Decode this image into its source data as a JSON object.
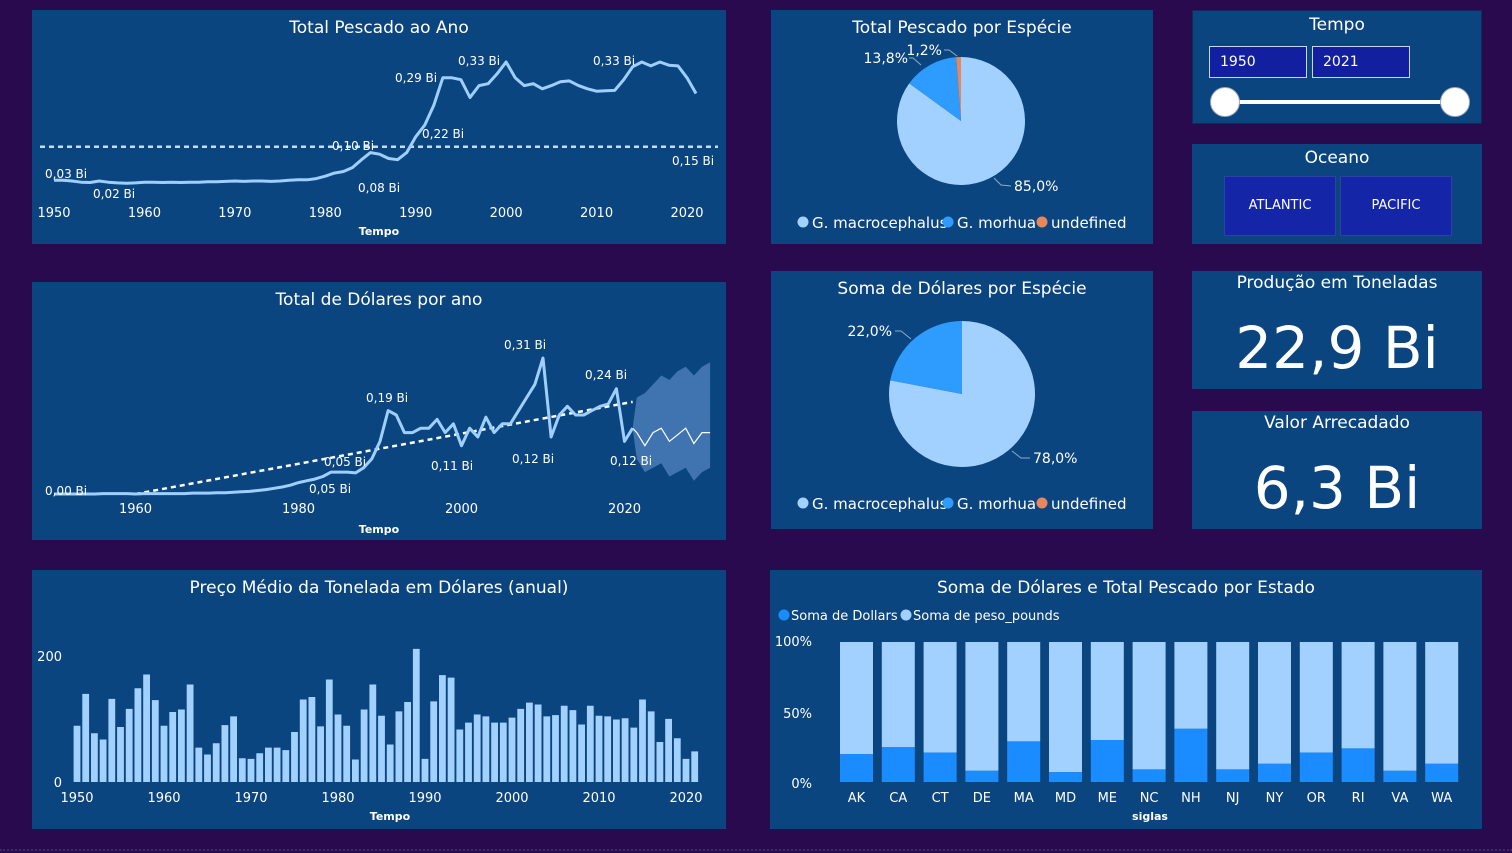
{
  "line_catch": {
    "title": "Total Pescado ao Ano",
    "xlabel": "Tempo",
    "x_ticks": [
      "1950",
      "1960",
      "1970",
      "1980",
      "1990",
      "2000",
      "2010",
      "2020"
    ],
    "labels": [
      "0,03 Bi",
      "0,02 Bi",
      "0,10 Bi",
      "0,08 Bi",
      "0,29 Bi",
      "0,22 Bi",
      "0,33 Bi",
      "0,33 Bi",
      "0,15 Bi"
    ],
    "colors": {
      "line": "#9fcfff",
      "avg": "#c6dcf5"
    }
  },
  "line_dollars": {
    "title": "Total de Dólares por ano",
    "xlabel": "Tempo",
    "x_ticks": [
      "1960",
      "1980",
      "2000",
      "2020"
    ],
    "labels": [
      "0,00 Bi",
      "0,05 Bi",
      "0,05 Bi",
      "0,19 Bi",
      "0,11 Bi",
      "0,31 Bi",
      "0,12 Bi",
      "0,24 Bi",
      "0,12 Bi"
    ]
  },
  "bar_price": {
    "title": "Preço Médio da Tonelada em Dólares (anual)",
    "xlabel": "Tempo",
    "y_ticks": [
      "200",
      "0"
    ],
    "x_ticks": [
      "1950",
      "1960",
      "1970",
      "1980",
      "1990",
      "2000",
      "2010",
      "2020"
    ]
  },
  "pie_catch": {
    "title": "Total Pescado por Espécie",
    "labels": [
      "85,0%",
      "13,8%",
      "1,2%"
    ],
    "legend": [
      "G. macrocephalus",
      "G. morhua",
      "undefined"
    ],
    "colors": [
      "#a2d1ff",
      "#2e9bff",
      "#e8875b"
    ]
  },
  "pie_dollars": {
    "title": "Soma de Dólares por Espécie",
    "labels": [
      "78,0%",
      "22,0%"
    ],
    "legend": [
      "G. macrocephalus",
      "G. morhua",
      "undefined"
    ],
    "colors": [
      "#a2d1ff",
      "#2e9bff",
      "#e8875b"
    ]
  },
  "stacked": {
    "title": "Soma de Dólares e Total Pescado por Estado",
    "legend": [
      "Soma de Dollars",
      "Soma de peso_pounds"
    ],
    "y_ticks": [
      "100%",
      "50%",
      "0%"
    ],
    "xlabel": "siglas",
    "colors": {
      "dollars": "#1a8cff",
      "pounds": "#a2d1ff"
    }
  },
  "slicer_tempo": {
    "title": "Tempo",
    "start": "1950",
    "end": "2021",
    "range_fraction": [
      0,
      1
    ]
  },
  "slicer_oceano": {
    "title": "Oceano",
    "options": [
      "ATLANTIC",
      "PACIFIC"
    ]
  },
  "kpi_producao": {
    "title": "Produção em Toneladas",
    "value": "22,9 Bi"
  },
  "kpi_valor": {
    "title": "Valor Arrecadado",
    "value": "6,3 Bi"
  },
  "chart_data": [
    {
      "type": "line",
      "title": "Total Pescado ao Ano",
      "xlabel": "Tempo",
      "ylabel": "",
      "x": [
        1950,
        1951,
        1952,
        1953,
        1954,
        1955,
        1956,
        1957,
        1958,
        1959,
        1960,
        1961,
        1962,
        1963,
        1964,
        1965,
        1966,
        1967,
        1968,
        1969,
        1970,
        1971,
        1972,
        1973,
        1974,
        1975,
        1976,
        1977,
        1978,
        1979,
        1980,
        1981,
        1982,
        1983,
        1984,
        1985,
        1986,
        1987,
        1988,
        1989,
        1990,
        1991,
        1992,
        1993,
        1994,
        1995,
        1996,
        1997,
        1998,
        1999,
        2000,
        2001,
        2002,
        2003,
        2004,
        2005,
        2006,
        2007,
        2008,
        2009,
        2010,
        2011,
        2012,
        2013,
        2014,
        2015,
        2016,
        2017,
        2018,
        2019,
        2020,
        2021
      ],
      "y": [
        0.03,
        0.03,
        0.028,
        0.025,
        0.024,
        0.028,
        0.025,
        0.023,
        0.022,
        0.023,
        0.025,
        0.025,
        0.024,
        0.025,
        0.024,
        0.025,
        0.025,
        0.026,
        0.026,
        0.027,
        0.028,
        0.027,
        0.028,
        0.028,
        0.027,
        0.028,
        0.03,
        0.031,
        0.031,
        0.034,
        0.04,
        0.048,
        0.052,
        0.062,
        0.082,
        0.1,
        0.096,
        0.085,
        0.082,
        0.1,
        0.14,
        0.17,
        0.22,
        0.29,
        0.29,
        0.285,
        0.24,
        0.27,
        0.275,
        0.3,
        0.33,
        0.29,
        0.27,
        0.275,
        0.262,
        0.27,
        0.28,
        0.282,
        0.27,
        0.262,
        0.256,
        0.257,
        0.258,
        0.285,
        0.318,
        0.33,
        0.32,
        0.33,
        0.322,
        0.32,
        0.29,
        0.25
      ],
      "average": 0.115,
      "ylim": [
        0,
        0.36
      ]
    },
    {
      "type": "line",
      "title": "Total de Dólares por ano",
      "xlabel": "Tempo",
      "x": [
        1950,
        1951,
        1952,
        1953,
        1954,
        1955,
        1956,
        1957,
        1958,
        1959,
        1960,
        1961,
        1962,
        1963,
        1964,
        1965,
        1966,
        1967,
        1968,
        1969,
        1970,
        1971,
        1972,
        1973,
        1974,
        1975,
        1976,
        1977,
        1978,
        1979,
        1980,
        1981,
        1982,
        1983,
        1984,
        1985,
        1986,
        1987,
        1988,
        1989,
        1990,
        1991,
        1992,
        1993,
        1994,
        1995,
        1996,
        1997,
        1998,
        1999,
        2000,
        2001,
        2002,
        2003,
        2004,
        2005,
        2006,
        2007,
        2008,
        2009,
        2010,
        2011,
        2012,
        2013,
        2014,
        2015,
        2016,
        2017,
        2018,
        2019,
        2020,
        2021
      ],
      "y": [
        0.0,
        0.0,
        0.0,
        0.0,
        0.0,
        0.0,
        0.001,
        0.001,
        0.001,
        0.001,
        0.0,
        0.001,
        0.001,
        0.001,
        0.001,
        0.001,
        0.001,
        0.002,
        0.002,
        0.002,
        0.003,
        0.003,
        0.004,
        0.005,
        0.006,
        0.008,
        0.01,
        0.013,
        0.016,
        0.02,
        0.026,
        0.03,
        0.034,
        0.04,
        0.05,
        0.05,
        0.05,
        0.048,
        0.06,
        0.08,
        0.12,
        0.19,
        0.18,
        0.14,
        0.14,
        0.15,
        0.15,
        0.17,
        0.14,
        0.16,
        0.11,
        0.15,
        0.13,
        0.175,
        0.14,
        0.16,
        0.16,
        0.19,
        0.22,
        0.25,
        0.31,
        0.13,
        0.18,
        0.2,
        0.18,
        0.18,
        0.19,
        0.2,
        0.205,
        0.24,
        0.12,
        0.15
      ],
      "forecast_x": [
        2022,
        2023,
        2024,
        2025,
        2026,
        2027,
        2028,
        2029,
        2030,
        2031
      ],
      "forecast_y": [
        0.14,
        0.11,
        0.14,
        0.15,
        0.12,
        0.135,
        0.15,
        0.115,
        0.14,
        0.14
      ],
      "forecast_range": [
        [
          0.08,
          0.22
        ],
        [
          0.05,
          0.23
        ],
        [
          0.06,
          0.25
        ],
        [
          0.07,
          0.27
        ],
        [
          0.04,
          0.26
        ],
        [
          0.05,
          0.28
        ],
        [
          0.06,
          0.29
        ],
        [
          0.03,
          0.27
        ],
        [
          0.05,
          0.29
        ],
        [
          0.06,
          0.3
        ]
      ],
      "trend": {
        "from": [
          1960,
          0.0
        ],
        "to": [
          2021,
          0.21
        ]
      },
      "ylim": [
        0,
        0.33
      ]
    },
    {
      "type": "bar",
      "title": "Preço Médio da Tonelada em Dólares (anual)",
      "xlabel": "Tempo",
      "x": [
        1950,
        1951,
        1952,
        1953,
        1954,
        1955,
        1956,
        1957,
        1958,
        1959,
        1960,
        1961,
        1962,
        1963,
        1964,
        1965,
        1966,
        1967,
        1968,
        1969,
        1970,
        1971,
        1972,
        1973,
        1974,
        1975,
        1976,
        1977,
        1978,
        1979,
        1980,
        1981,
        1982,
        1983,
        1984,
        1985,
        1986,
        1987,
        1988,
        1989,
        1990,
        1991,
        1992,
        1993,
        1994,
        1995,
        1996,
        1997,
        1998,
        1999,
        2000,
        2001,
        2002,
        2003,
        2004,
        2005,
        2006,
        2007,
        2008,
        2009,
        2010,
        2011,
        2012,
        2013,
        2014,
        2015,
        2016,
        2017,
        2018,
        2019,
        2020,
        2021
      ],
      "values": [
        90,
        141,
        78,
        68,
        133,
        88,
        117,
        150,
        172,
        131,
        90,
        112,
        116,
        156,
        55,
        44,
        62,
        91,
        105,
        38,
        37,
        46,
        55,
        55,
        51,
        80,
        132,
        136,
        89,
        164,
        108,
        90,
        36,
        116,
        156,
        106,
        60,
        113,
        128,
        213,
        37,
        129,
        171,
        167,
        84,
        95,
        108,
        105,
        95,
        95,
        103,
        117,
        127,
        124,
        105,
        107,
        122,
        115,
        92,
        122,
        106,
        105,
        100,
        102,
        87,
        132,
        113,
        64,
        101,
        70,
        37,
        49
      ],
      "ylim": [
        0,
        240
      ]
    },
    {
      "type": "pie",
      "title": "Total Pescado por Espécie",
      "categories": [
        "G. macrocephalus",
        "G. morhua",
        "undefined"
      ],
      "values": [
        85.0,
        13.8,
        1.2
      ],
      "legend": "bottom"
    },
    {
      "type": "pie",
      "title": "Soma de Dólares por Espécie",
      "categories": [
        "G. macrocephalus",
        "G. morhua",
        "undefined"
      ],
      "values": [
        78.0,
        22.0,
        0
      ],
      "legend": "bottom"
    },
    {
      "type": "bar",
      "title": "Soma de Dólares e Total Pescado por Estado",
      "xlabel": "siglas",
      "categories": [
        "AK",
        "CA",
        "CT",
        "DE",
        "MA",
        "MD",
        "ME",
        "NC",
        "NH",
        "NJ",
        "NY",
        "OR",
        "RI",
        "VA",
        "WA"
      ],
      "series": [
        {
          "name": "Soma de Dollars",
          "values": [
            20,
            25,
            21,
            8,
            29,
            7,
            30,
            9,
            38,
            9,
            13,
            21,
            24,
            8,
            13
          ]
        },
        {
          "name": "Soma de peso_pounds",
          "values": [
            80,
            75,
            79,
            92,
            71,
            93,
            70,
            91,
            62,
            91,
            87,
            79,
            76,
            92,
            87
          ]
        }
      ],
      "stacked": "100%",
      "legend": "top-left"
    }
  ]
}
